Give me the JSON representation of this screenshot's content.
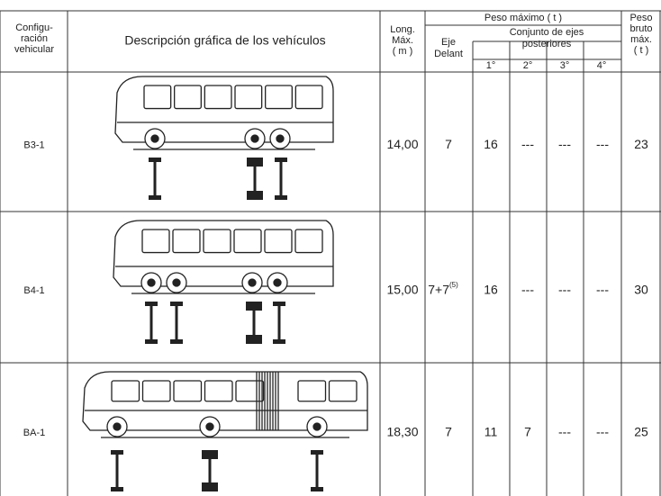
{
  "header": {
    "config": [
      "Configu-",
      "ración",
      "vehicular"
    ],
    "description": "Descripción gráfica de los vehículos",
    "length": [
      "Long.",
      "Máx.",
      "( m )"
    ],
    "max_weight": "Peso máximo ( t )",
    "front_axle": [
      "Eje",
      "Delant"
    ],
    "rear_group": [
      "Conjunto de ejes",
      "posteriores"
    ],
    "axles": [
      "1°",
      "2°",
      "3°",
      "4°"
    ],
    "gross": [
      "Peso",
      "bruto",
      "máx.",
      "( t )"
    ]
  },
  "table": {
    "rows": [
      {
        "config": "B3-1",
        "length": "14,00",
        "front": "7",
        "front_note": null,
        "a1": "16",
        "a2": "---",
        "a3": "---",
        "a4": "---",
        "gross": "23"
      },
      {
        "config": "B4-1",
        "length": "15,00",
        "front": "7+7",
        "front_note": "(5)",
        "a1": "16",
        "a2": "---",
        "a3": "---",
        "a4": "---",
        "gross": "30"
      },
      {
        "config": "BA-1",
        "length": "18,30",
        "front": "7",
        "front_note": null,
        "a1": "11",
        "a2": "7",
        "a3": "---",
        "a4": "---",
        "gross": "25"
      }
    ]
  }
}
